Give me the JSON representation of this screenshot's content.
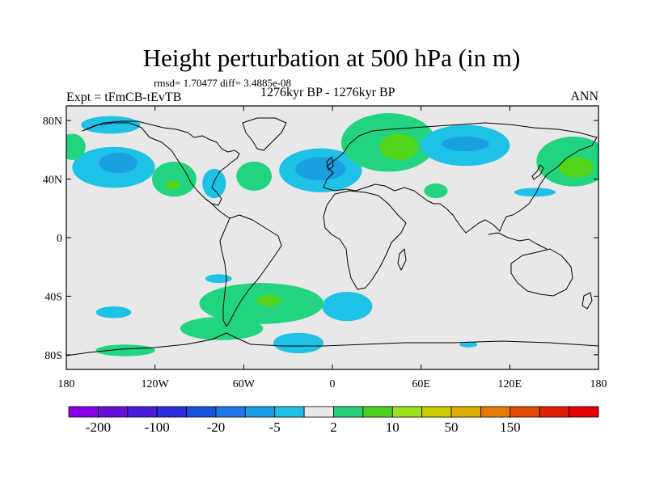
{
  "header": {
    "title": "Height perturbation at 500 hPa (in m)",
    "stats": "rmsd= 1.70477 diff= 3.4885e-08",
    "experiment": "Expt = tFmCB-tEvTB",
    "period": "1276kyr BP - 1276kyr BP",
    "season": "ANN"
  },
  "map": {
    "projection": "cylindrical equidistant",
    "lon_range": [
      -180,
      180
    ],
    "lat_range": [
      -90,
      90
    ],
    "background_color": "#e8e8e8",
    "x_ticks": [
      {
        "lon": -180,
        "label": "180"
      },
      {
        "lon": -120,
        "label": "120W"
      },
      {
        "lon": -60,
        "label": "60W"
      },
      {
        "lon": 0,
        "label": "0"
      },
      {
        "lon": 60,
        "label": "60E"
      },
      {
        "lon": 120,
        "label": "120E"
      },
      {
        "lon": 180,
        "label": "180"
      }
    ],
    "y_ticks": [
      {
        "lat": 80,
        "label": "80N"
      },
      {
        "lat": 40,
        "label": "40N"
      },
      {
        "lat": 0,
        "label": "0"
      },
      {
        "lat": -40,
        "label": "40S"
      },
      {
        "lat": -80,
        "label": "80S"
      }
    ],
    "anomalies": [
      {
        "id": "n-pacific-neg",
        "lon": -148,
        "lat": 48,
        "rlon": 28,
        "rlat": 14,
        "level": -5
      },
      {
        "id": "n-pacific-neg-core",
        "lon": -145,
        "lat": 51,
        "rlon": 13,
        "rlat": 7,
        "level": -20
      },
      {
        "id": "alaska-neg",
        "lon": -150,
        "lat": 77,
        "rlon": 20,
        "rlat": 6,
        "level": -5
      },
      {
        "id": "dateline-pos-n",
        "lon": -176,
        "lat": 62,
        "rlon": 9,
        "rlat": 9,
        "level": 2
      },
      {
        "id": "n-america-pos",
        "lon": -107,
        "lat": 40,
        "rlon": 15,
        "rlat": 12,
        "level": 2
      },
      {
        "id": "n-america-pos-core",
        "lon": -108,
        "lat": 36,
        "rlon": 5,
        "rlat": 3,
        "level": 10
      },
      {
        "id": "e-us-neg",
        "lon": -80,
        "lat": 37,
        "rlon": 8,
        "rlat": 10,
        "level": -5
      },
      {
        "id": "w-atlantic-pos",
        "lon": -53,
        "lat": 42,
        "rlon": 12,
        "rlat": 10,
        "level": 2
      },
      {
        "id": "n-atlantic-neg",
        "lon": -8,
        "lat": 46,
        "rlon": 28,
        "rlat": 15,
        "level": -5
      },
      {
        "id": "n-atlantic-neg-core",
        "lon": -8,
        "lat": 47,
        "rlon": 17,
        "rlat": 8,
        "level": -20
      },
      {
        "id": "europe-pos",
        "lon": 38,
        "lat": 65,
        "rlon": 32,
        "rlat": 20,
        "level": 2
      },
      {
        "id": "europe-pos-core",
        "lon": 45,
        "lat": 62,
        "rlon": 13,
        "rlat": 9,
        "level": 10
      },
      {
        "id": "caspian-pos",
        "lon": 70,
        "lat": 32,
        "rlon": 8,
        "rlat": 5,
        "level": 2
      },
      {
        "id": "siberia-neg",
        "lon": 90,
        "lat": 63,
        "rlon": 30,
        "rlat": 14,
        "level": -5
      },
      {
        "id": "siberia-neg-core",
        "lon": 90,
        "lat": 64,
        "rlon": 16,
        "rlat": 5,
        "level": -20
      },
      {
        "id": "w-pacific-pos",
        "lon": 163,
        "lat": 52,
        "rlon": 25,
        "rlat": 17,
        "level": 2
      },
      {
        "id": "w-pacific-pos-core",
        "lon": 165,
        "lat": 48,
        "rlon": 12,
        "rlat": 7,
        "level": 10
      },
      {
        "id": "japan-neg",
        "lon": 137,
        "lat": 31,
        "rlon": 14,
        "rlat": 3,
        "level": -5
      },
      {
        "id": "s-pacific-neg-n",
        "lon": -77,
        "lat": -28,
        "rlon": 9,
        "rlat": 3,
        "level": -5
      },
      {
        "id": "s-pacific-neg-w",
        "lon": -148,
        "lat": -51,
        "rlon": 12,
        "rlat": 4,
        "level": -5
      },
      {
        "id": "s-atlantic-pos",
        "lon": -48,
        "lat": -45,
        "rlon": 42,
        "rlat": 14,
        "level": 2
      },
      {
        "id": "s-atlantic-pos-core",
        "lon": -43,
        "lat": -43,
        "rlon": 8,
        "rlat": 4,
        "level": 10
      },
      {
        "id": "s-pacific-pos-w",
        "lon": -75,
        "lat": -62,
        "rlon": 28,
        "rlat": 8,
        "level": 2
      },
      {
        "id": "s-indian-neg",
        "lon": 10,
        "lat": -47,
        "rlon": 17,
        "rlat": 10,
        "level": -5
      },
      {
        "id": "weddell-neg",
        "lon": -23,
        "lat": -72,
        "rlon": 17,
        "rlat": 7,
        "level": -5
      },
      {
        "id": "ross-pos",
        "lon": -140,
        "lat": -77,
        "rlon": 20,
        "rlat": 4,
        "level": 2
      },
      {
        "id": "e-antarctic-neg",
        "lon": 92,
        "lat": -73,
        "rlon": 6,
        "rlat": 2,
        "level": -5
      }
    ]
  },
  "colorbar": {
    "colors": [
      "#8a00e6",
      "#6a0fd9",
      "#4b1ed9",
      "#2e2ee0",
      "#1a52e0",
      "#1e78e6",
      "#1a9ee6",
      "#1ec0e6",
      "#e8e8e8",
      "#22d07a",
      "#4ad11e",
      "#9ee01e",
      "#cccc00",
      "#dcac00",
      "#e67a00",
      "#e64c00",
      "#e01e00",
      "#e60000"
    ],
    "labels": [
      "-200",
      "-100",
      "-20",
      "-5",
      "2",
      "10",
      "50",
      "150"
    ],
    "level_colors": {
      "-20": "#1aa0e0",
      "-5": "#1ec2e6",
      "2": "#22d480",
      "10": "#52d51a"
    }
  }
}
